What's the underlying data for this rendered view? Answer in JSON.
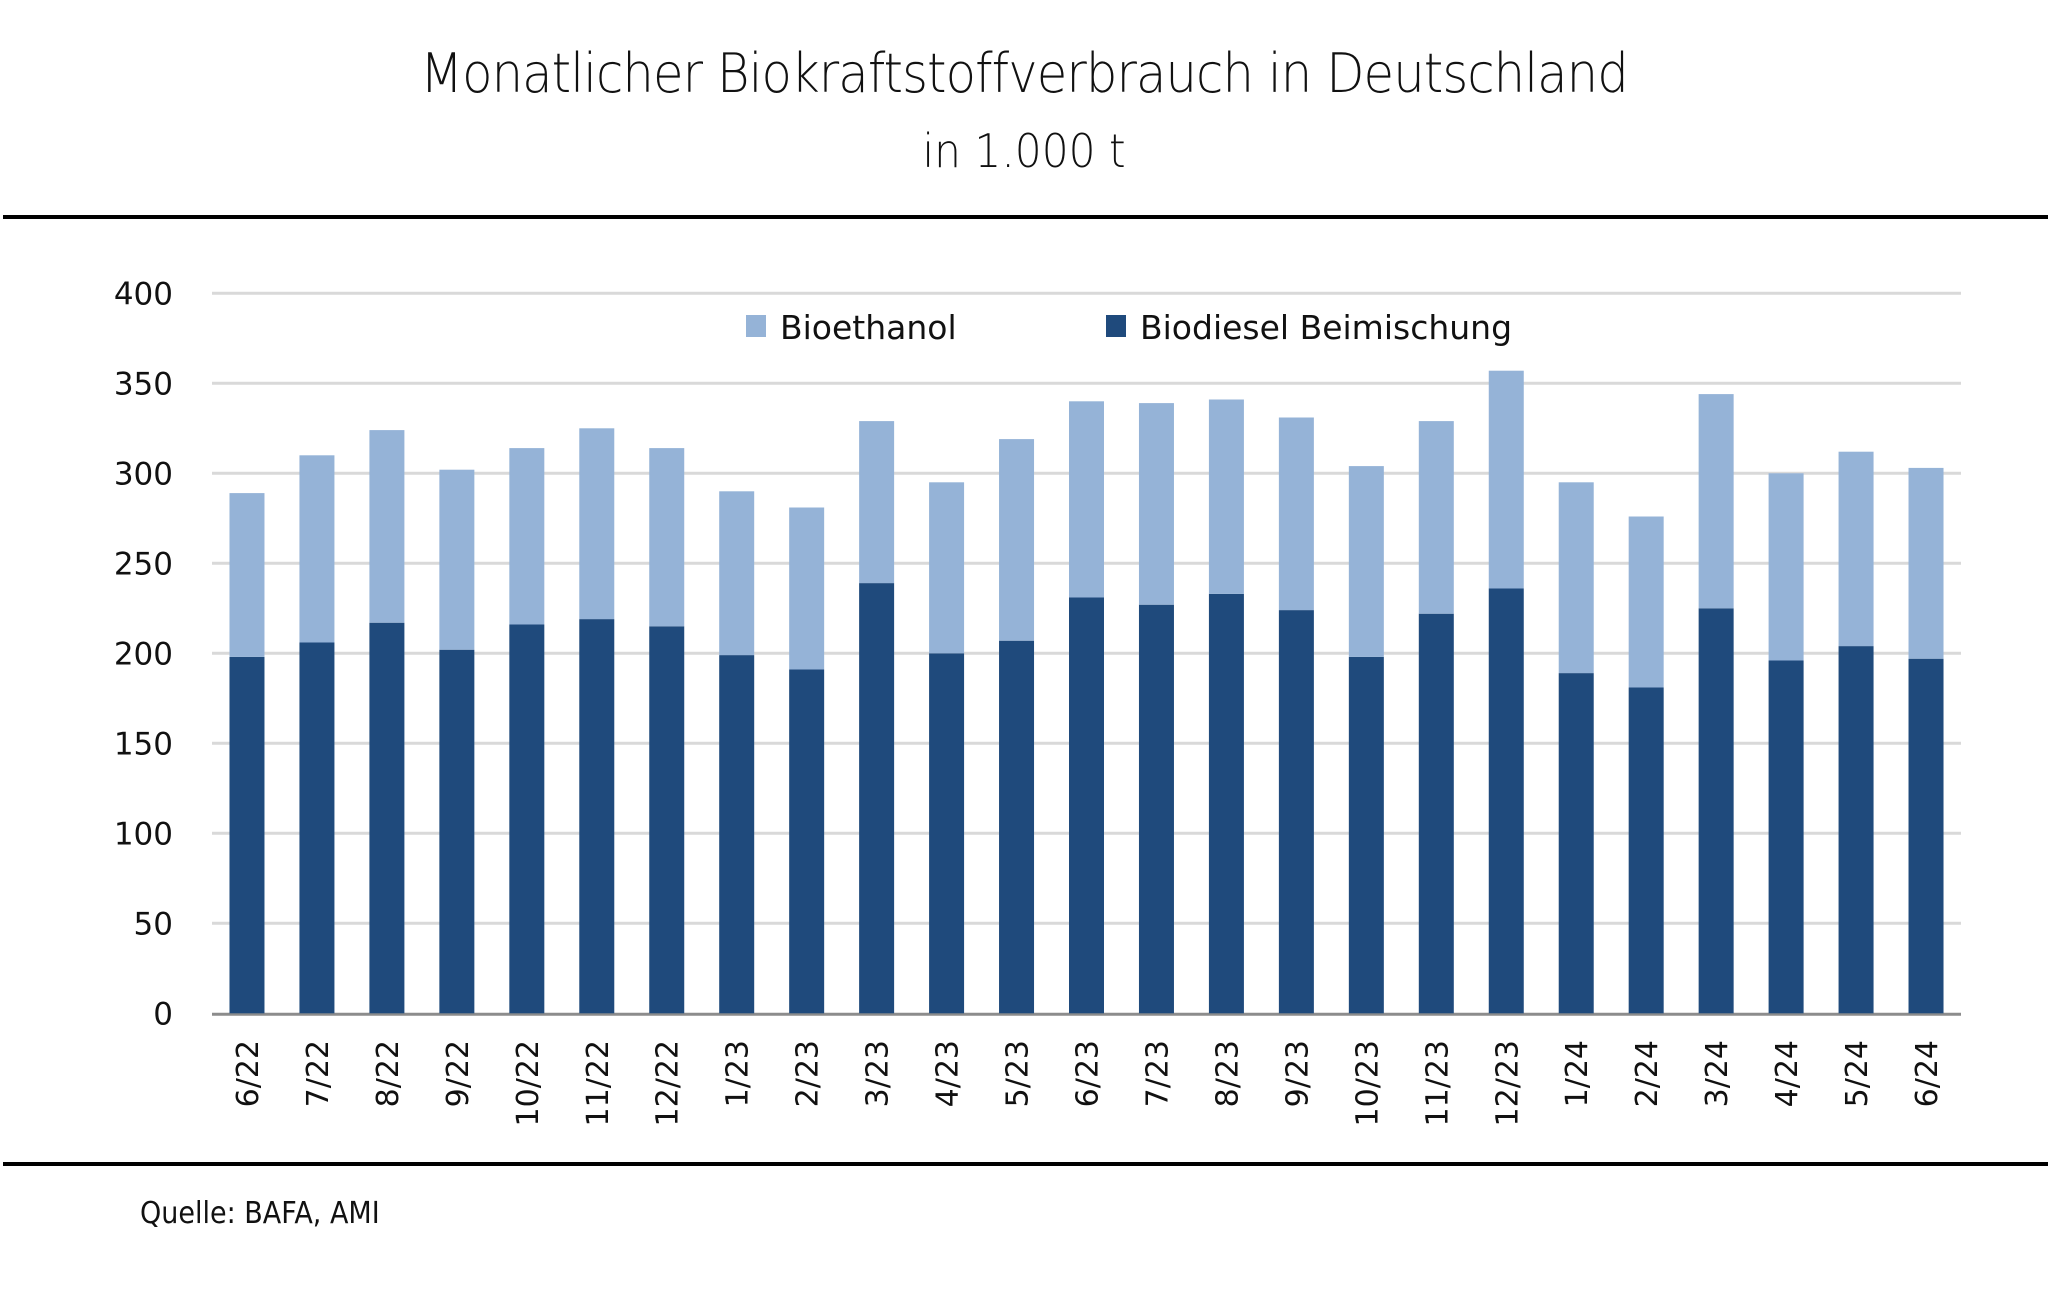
{
  "chart_data": {
    "type": "bar",
    "stacked": true,
    "title": "Monatlicher Biokraftstoffverbrauch in Deutschland",
    "subtitle": "in 1.000 t",
    "xlabel": "",
    "ylabel": "",
    "ylim": [
      0,
      400
    ],
    "yticks": [
      0,
      50,
      100,
      150,
      200,
      250,
      300,
      350,
      400
    ],
    "grid": true,
    "legend_position": "top-center",
    "categories": [
      "6/22",
      "7/22",
      "8/22",
      "9/22",
      "10/22",
      "11/22",
      "12/22",
      "1/23",
      "2/23",
      "3/23",
      "4/23",
      "5/23",
      "6/23",
      "7/23",
      "8/23",
      "9/23",
      "10/23",
      "11/23",
      "12/23",
      "1/24",
      "2/24",
      "3/24",
      "4/24",
      "5/24",
      "6/24"
    ],
    "series": [
      {
        "name": "Biodiesel Beimischung",
        "color": "#1f4a7c",
        "values": [
          198,
          206,
          217,
          202,
          216,
          219,
          215,
          199,
          191,
          239,
          200,
          207,
          231,
          227,
          233,
          224,
          198,
          222,
          236,
          189,
          181,
          225,
          196,
          204,
          197
        ]
      },
      {
        "name": "Bioethanol",
        "color": "#95b3d7",
        "values": [
          91,
          104,
          107,
          100,
          98,
          106,
          99,
          91,
          90,
          90,
          95,
          112,
          109,
          112,
          108,
          107,
          106,
          107,
          121,
          106,
          95,
          119,
          104,
          108,
          106
        ]
      }
    ],
    "legend": [
      {
        "name": "Bioethanol",
        "color": "#95b3d7"
      },
      {
        "name": "Biodiesel Beimischung",
        "color": "#1f4a7c"
      }
    ],
    "source": "Quelle: BAFA, AMI"
  }
}
